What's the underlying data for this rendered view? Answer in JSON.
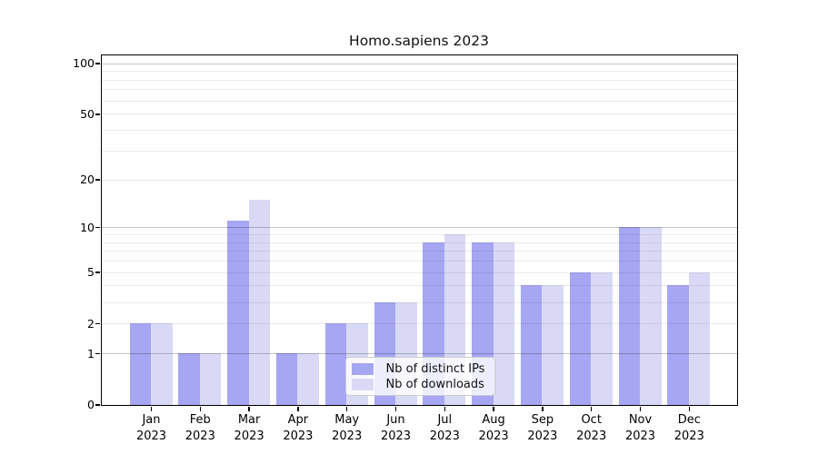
{
  "title": "Homo.sapiens 2023",
  "chart_data": {
    "type": "bar",
    "title": "Homo.sapiens 2023",
    "categories": [
      "Jan 2023",
      "Feb 2023",
      "Mar 2023",
      "Apr 2023",
      "May 2023",
      "Jun 2023",
      "Jul 2023",
      "Aug 2023",
      "Sep 2023",
      "Oct 2023",
      "Nov 2023",
      "Dec 2023"
    ],
    "series": [
      {
        "name": "Nb of distinct IPs",
        "color": "#a6a6f2",
        "values": [
          2,
          1,
          11,
          1,
          2,
          3,
          8,
          8,
          4,
          5,
          10,
          4
        ]
      },
      {
        "name": "Nb of downloads",
        "color": "#d9d9f6",
        "values": [
          2,
          1,
          15,
          1,
          2,
          3,
          9,
          8,
          4,
          5,
          10,
          5
        ]
      }
    ],
    "xlabel": "",
    "ylabel": "",
    "yscale": "log10(value+1)",
    "yticks": [
      0,
      1,
      2,
      5,
      10,
      20,
      50,
      100
    ],
    "ylim": [
      0,
      112
    ],
    "gridlines": {
      "major": [
        1,
        10,
        100
      ],
      "minor": [
        2,
        3,
        4,
        5,
        6,
        7,
        8,
        9,
        20,
        30,
        40,
        50,
        60,
        70,
        80,
        90
      ]
    },
    "grid": "on",
    "legend_position": "inside lower-center"
  },
  "colors": {
    "bar_distinct_ips": "#a6a6f2",
    "bar_downloads": "#d9d9f6",
    "grid_major": "rgba(0,0,0,0.23)",
    "grid_minor": "rgba(0,0,0,0.08)",
    "axis": "#000000",
    "legend_bg": "rgba(255,255,255,0.8)",
    "legend_border": "#cccccc",
    "text": "#111111"
  }
}
